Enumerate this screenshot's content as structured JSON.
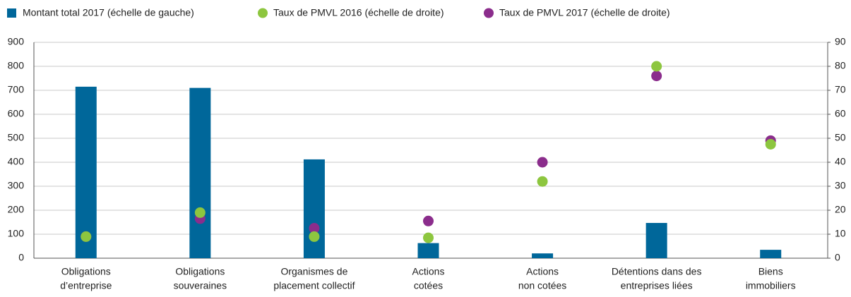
{
  "chart_data": {
    "type": "bar_scatter",
    "categories": [
      [
        "Obligations",
        "d’entreprise"
      ],
      [
        "Obligations",
        "souveraines"
      ],
      [
        "Organismes de",
        "placement collectif"
      ],
      [
        "Actions",
        "cotées"
      ],
      [
        "Actions",
        "non cotées"
      ],
      [
        "Détentions dans des",
        "entreprises liées"
      ],
      [
        "Biens",
        "immobiliers"
      ]
    ],
    "series": [
      {
        "name": "Montant total 2017 (échelle de gauche)",
        "color": "#00679a",
        "kind": "bar",
        "values": [
          715,
          710,
          412,
          63,
          20,
          147,
          35
        ]
      },
      {
        "name": "Taux de PMVL 2016 (échelle de droite)",
        "color": "#8dc63f",
        "kind": "dot",
        "axis": "y2",
        "values": [
          9,
          19,
          9,
          8.5,
          32,
          80,
          47.5
        ]
      },
      {
        "name": "Taux de PMVL 2017 (échelle de droite)",
        "color": "#8b2d8c",
        "kind": "dot",
        "axis": "y2",
        "values": [
          9,
          16.5,
          12.5,
          15.5,
          40,
          76,
          49
        ]
      }
    ],
    "ylim": [
      0,
      900
    ],
    "yticks": [
      0,
      100,
      200,
      300,
      400,
      500,
      600,
      700,
      800,
      900
    ],
    "y2lim": [
      0,
      90
    ],
    "y2ticks": [
      0,
      10,
      20,
      30,
      40,
      50,
      60,
      70,
      80,
      90
    ],
    "grid": true
  }
}
